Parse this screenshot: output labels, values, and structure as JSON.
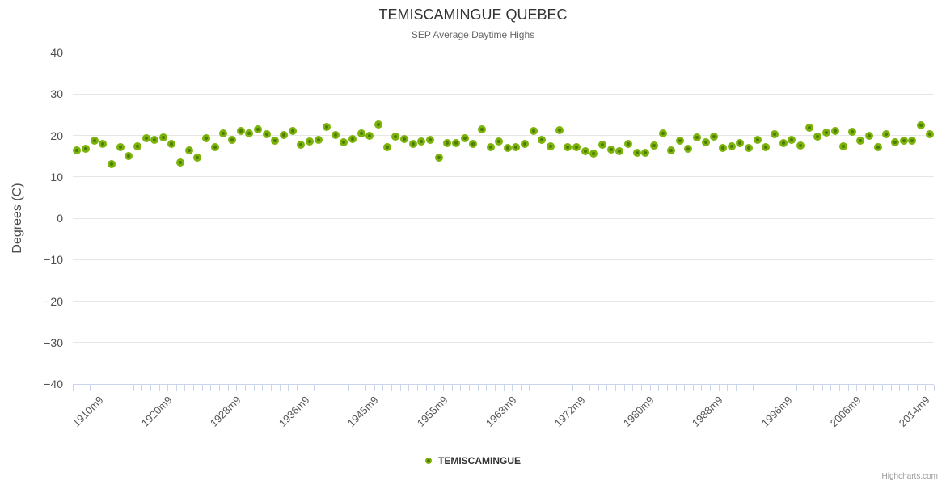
{
  "chart_data": {
    "type": "scatter",
    "title": "TEMISCAMINGUE QUEBEC",
    "subtitle": "SEP Average Daytime Highs",
    "ylabel": "Degrees (C)",
    "ylim": [
      -40,
      40
    ],
    "y_ticks": [
      40,
      30,
      20,
      10,
      0,
      -10,
      -20,
      -30,
      -40
    ],
    "grid": "horizontal-only",
    "x_tick_labels": [
      "1910m9",
      "1920m9",
      "1928m9",
      "1936m9",
      "1945m9",
      "1955m9",
      "1963m9",
      "1972m9",
      "1980m9",
      "1988m9",
      "1996m9",
      "2006m9",
      "2014m9"
    ],
    "x_label_start_index": 2,
    "x_label_step": 8,
    "legend_position": "bottom-center",
    "series": [
      {
        "name": "TEMISCAMINGUE",
        "marker_ring_color": "#7bb30a",
        "marker_core_color": "#4e7b04",
        "values": [
          16.3,
          16.8,
          18.7,
          17.9,
          13.0,
          17.2,
          15.0,
          17.3,
          19.4,
          19.0,
          19.6,
          17.9,
          13.5,
          16.4,
          14.7,
          19.4,
          17.2,
          20.5,
          18.9,
          21.1,
          20.5,
          21.4,
          20.3,
          18.8,
          20.1,
          21.1,
          17.7,
          18.6,
          19.0,
          22.1,
          20.1,
          18.4,
          19.2,
          20.5,
          19.9,
          22.7,
          17.1,
          19.8,
          19.2,
          18.0,
          18.6,
          18.9,
          14.6,
          18.2,
          18.2,
          19.4,
          17.9,
          21.4,
          17.1,
          18.5,
          16.9,
          17.2,
          17.9,
          21.0,
          19.0,
          17.4,
          21.2,
          17.2,
          17.2,
          16.1,
          15.6,
          17.7,
          16.6,
          16.2,
          17.9,
          15.8,
          15.9,
          17.5,
          20.5,
          16.4,
          18.8,
          16.7,
          19.5,
          18.4,
          19.8,
          16.9,
          17.4,
          18.1,
          17.0,
          19.0,
          17.1,
          20.3,
          18.2,
          19.0,
          17.5,
          21.9,
          19.8,
          20.6,
          21.1,
          17.4,
          20.8,
          18.7,
          20.0,
          17.2,
          20.3,
          18.3,
          18.8,
          18.8,
          22.5,
          20.3
        ]
      }
    ]
  },
  "credit": "Highcharts.com",
  "colors": {
    "grid": "#e6e6e6",
    "axis_line": "#ccd6eb",
    "title": "#333333",
    "subtitle": "#666666",
    "marker_ring": "#7bb30a",
    "marker_core": "#4e7b04"
  }
}
